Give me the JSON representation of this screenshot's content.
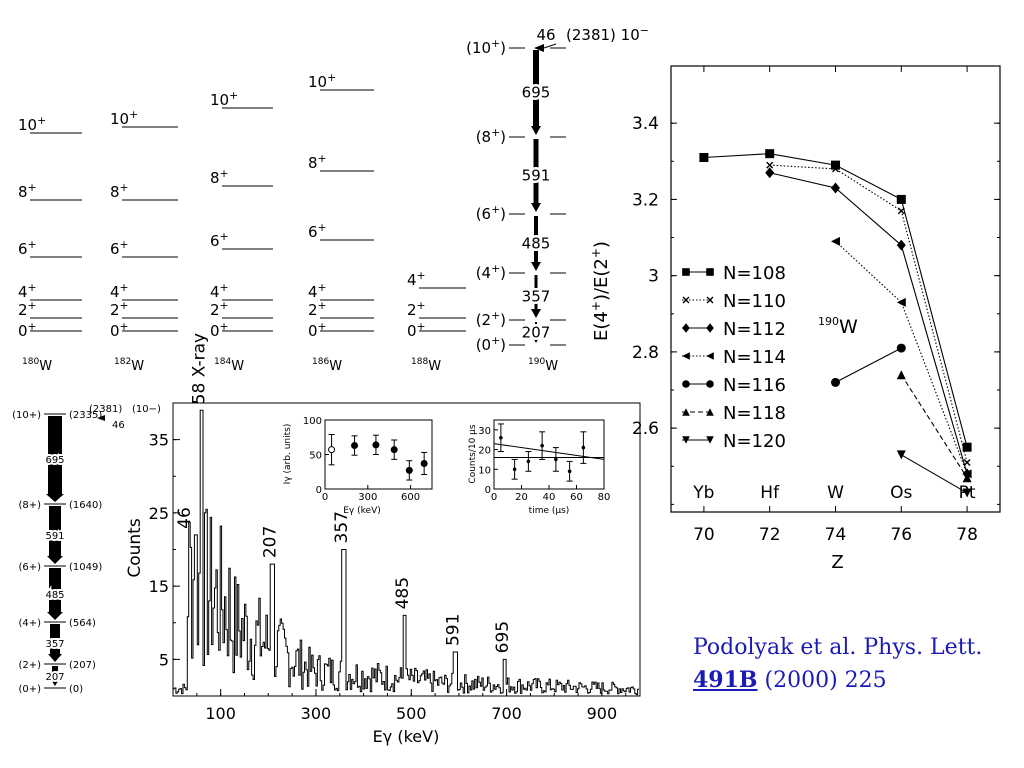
{
  "citation": {
    "line1": "Podolyak et al. Phys. Lett.",
    "volume": "491B",
    "rest": " (2000) 225"
  },
  "level_schemes": {
    "isotopes": [
      {
        "mass": "180",
        "element": "W",
        "levels": [
          "0+",
          "2+",
          "4+",
          "6+",
          "8+",
          "10+"
        ]
      },
      {
        "mass": "182",
        "element": "W",
        "levels": [
          "0+",
          "2+",
          "4+",
          "6+",
          "8+",
          "10+"
        ]
      },
      {
        "mass": "184",
        "element": "W",
        "levels": [
          "0+",
          "2+",
          "4+",
          "6+",
          "8+",
          "10+"
        ]
      },
      {
        "mass": "186",
        "element": "W",
        "levels": [
          "0+",
          "2+",
          "4+",
          "6+",
          "8+",
          "10+"
        ]
      },
      {
        "mass": "188",
        "element": "W",
        "levels": [
          "0+",
          "2+",
          "4+"
        ]
      }
    ],
    "w190": {
      "mass": "190",
      "element": "W",
      "levels": [
        "(0+)",
        "(2+)",
        "(4+)",
        "(6+)",
        "(8+)",
        "(10+)"
      ],
      "transitions": [
        "207",
        "357",
        "485",
        "591",
        "695",
        "46"
      ],
      "isomer": "(2381) 10",
      "isomer_sup": "−"
    }
  },
  "small_scheme": {
    "spins": [
      "(0+)",
      "(2+)",
      "(4+)",
      "(6+)",
      "(8+)",
      "(10+)"
    ],
    "energies": [
      "(0)",
      "(207)",
      "(564)",
      "(1049)",
      "(1640)",
      "(2335)"
    ],
    "transitions": [
      "207",
      "357",
      "485",
      "591",
      "695"
    ],
    "isomer_energy": "(2381)",
    "isomer_spin": "(10−)",
    "isomer_gamma": "46"
  },
  "chart_data": [
    {
      "type": "line",
      "xlabel": "Z",
      "ylabel": "E(4+)/E(2+)",
      "x_tick_labels": [
        "70",
        "72",
        "74",
        "76",
        "78"
      ],
      "element_labels": [
        "Yb",
        "Hf",
        "W",
        "Os",
        "Pt"
      ],
      "y_tick_labels": [
        "2.6",
        "2.8",
        "3",
        "3.2",
        "3.4"
      ],
      "xlim": [
        69,
        79
      ],
      "ylim": [
        2.38,
        3.55
      ],
      "annotation": {
        "sup": "190",
        "text": "W"
      },
      "legend_position": "left",
      "series": [
        {
          "name": "N=108",
          "marker": "square",
          "dash": "solid",
          "x": [
            70,
            72,
            74,
            76,
            78
          ],
          "y": [
            3.31,
            3.32,
            3.29,
            3.2,
            2.55
          ]
        },
        {
          "name": "N=110",
          "marker": "x",
          "dash": "dotted",
          "x": [
            72,
            74,
            76,
            78
          ],
          "y": [
            3.29,
            3.28,
            3.17,
            2.51
          ]
        },
        {
          "name": "N=112",
          "marker": "diamond",
          "dash": "solid",
          "x": [
            72,
            74,
            76,
            78
          ],
          "y": [
            3.27,
            3.23,
            3.08,
            2.48
          ]
        },
        {
          "name": "N=114",
          "marker": "triangle-left",
          "dash": "dotted",
          "x": [
            74,
            76,
            78
          ],
          "y": [
            3.09,
            2.93,
            2.48
          ]
        },
        {
          "name": "N=116",
          "marker": "circle",
          "dash": "solid",
          "x": [
            74,
            76
          ],
          "y": [
            2.72,
            2.81
          ]
        },
        {
          "name": "N=118",
          "marker": "triangle-up",
          "dash": "dashed",
          "x": [
            76,
            78
          ],
          "y": [
            2.74,
            2.47
          ]
        },
        {
          "name": "N=120",
          "marker": "triangle-down",
          "dash": "solid",
          "x": [
            76,
            78
          ],
          "y": [
            2.53,
            2.43
          ]
        }
      ]
    },
    {
      "type": "line",
      "xlabel": "Eγ (keV)",
      "ylabel": "Counts",
      "x_tick_labels": [
        "100",
        "300",
        "500",
        "700",
        "900"
      ],
      "y_tick_labels": [
        "5",
        "15",
        "25",
        "35"
      ],
      "xlim": [
        0,
        980
      ],
      "ylim": [
        0,
        40
      ],
      "peaks": [
        {
          "energy": 46,
          "label": "46",
          "counts": 22
        },
        {
          "energy": 58,
          "label": "58 X-ray",
          "counts": 39
        },
        {
          "energy": 207,
          "label": "207",
          "counts": 18
        },
        {
          "energy": 357,
          "label": "357",
          "counts": 20
        },
        {
          "energy": 485,
          "label": "485",
          "counts": 11
        },
        {
          "energy": 591,
          "label": "591",
          "counts": 6
        },
        {
          "energy": 695,
          "label": "695",
          "counts": 5
        }
      ]
    },
    {
      "type": "scatter",
      "xlabel": "Eγ (keV)",
      "ylabel": "Iγ (arb. units)",
      "x_tick_labels": [
        "0",
        "300",
        "600"
      ],
      "y_tick_labels": [
        "0",
        "50",
        "100"
      ],
      "xlim": [
        0,
        750
      ],
      "ylim": [
        0,
        100
      ],
      "points": [
        {
          "x": 46,
          "y": 57,
          "err": 22,
          "open": true
        },
        {
          "x": 207,
          "y": 63,
          "err": 14,
          "open": false
        },
        {
          "x": 357,
          "y": 64,
          "err": 14,
          "open": false
        },
        {
          "x": 485,
          "y": 57,
          "err": 14,
          "open": false
        },
        {
          "x": 591,
          "y": 27,
          "err": 14,
          "open": false
        },
        {
          "x": 695,
          "y": 37,
          "err": 16,
          "open": false
        }
      ]
    },
    {
      "type": "scatter",
      "xlabel": "time (μs)",
      "ylabel": "Counts/10 μs",
      "x_tick_labels": [
        "0",
        "20",
        "40",
        "60",
        "80"
      ],
      "y_tick_labels": [
        "0",
        "10",
        "20",
        "30"
      ],
      "xlim": [
        0,
        80
      ],
      "ylim": [
        0,
        35
      ],
      "fit_line": [
        [
          0,
          23
        ],
        [
          80,
          15
        ]
      ],
      "fit_line2": [
        [
          0,
          16
        ],
        [
          80,
          16
        ]
      ],
      "points": [
        {
          "x": 5,
          "y": 26,
          "err": 7
        },
        {
          "x": 15,
          "y": 10,
          "err": 5
        },
        {
          "x": 25,
          "y": 14,
          "err": 5
        },
        {
          "x": 35,
          "y": 22,
          "err": 7
        },
        {
          "x": 45,
          "y": 15,
          "err": 6
        },
        {
          "x": 55,
          "y": 9,
          "err": 5
        },
        {
          "x": 65,
          "y": 21,
          "err": 8
        }
      ]
    }
  ]
}
